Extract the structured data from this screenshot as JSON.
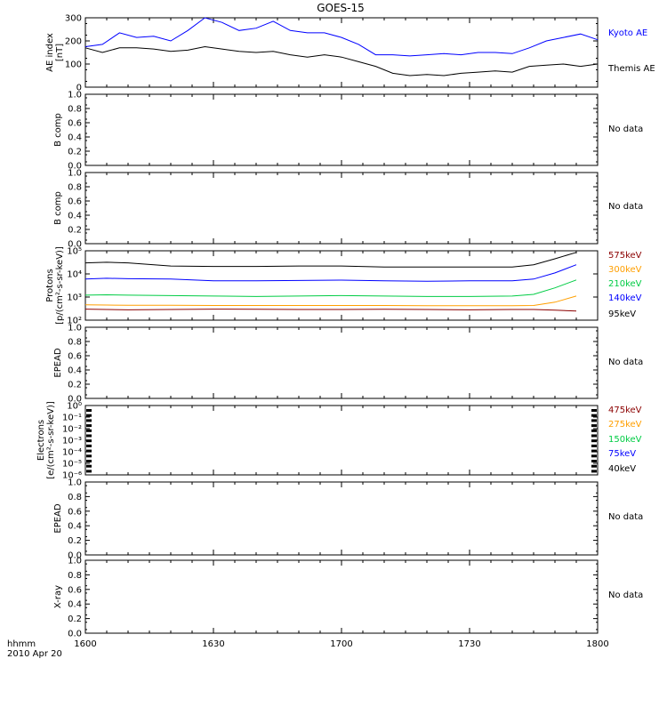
{
  "title": "GOES-15",
  "colors": {
    "kyoto": "#0000ff",
    "themis": "#000000",
    "e575": "#8b0000",
    "e300": "#ff9f00",
    "e210": "#00cc44",
    "e140": "#0000ff",
    "e95": "#000000"
  },
  "xaxis": {
    "ticks": [
      "1600",
      "1630",
      "1700",
      "1730",
      "1800"
    ],
    "corner_label": "hhmm",
    "date": "2010 Apr 20"
  },
  "chart_data": [
    {
      "type": "line",
      "ylabel": "AE index [nT]",
      "ylim": [
        0,
        300
      ],
      "yticks": [
        "0",
        "100",
        "200",
        "300"
      ],
      "x_unit": "minutes after 16:00",
      "series": [
        {
          "name": "Kyoto AE",
          "x": [
            0,
            4,
            8,
            12,
            16,
            20,
            24,
            28,
            32,
            36,
            40,
            44,
            48,
            52,
            56,
            60,
            64,
            68,
            72,
            76,
            80,
            84,
            88,
            92,
            96,
            100,
            104,
            108,
            112,
            116,
            120
          ],
          "values": [
            175,
            185,
            235,
            215,
            220,
            200,
            245,
            300,
            280,
            245,
            255,
            285,
            245,
            235,
            235,
            215,
            185,
            140,
            140,
            135,
            140,
            145,
            140,
            150,
            150,
            145,
            170,
            200,
            215,
            230,
            205
          ]
        },
        {
          "name": "Themis AE",
          "x": [
            0,
            4,
            8,
            12,
            16,
            20,
            24,
            28,
            32,
            36,
            40,
            44,
            48,
            52,
            56,
            60,
            64,
            68,
            72,
            76,
            80,
            84,
            88,
            92,
            96,
            100,
            104,
            108,
            112,
            116,
            120
          ],
          "values": [
            170,
            150,
            170,
            170,
            165,
            155,
            160,
            175,
            165,
            155,
            150,
            155,
            140,
            130,
            140,
            130,
            110,
            90,
            60,
            50,
            55,
            50,
            60,
            65,
            70,
            65,
            90,
            95,
            100,
            90,
            100
          ]
        }
      ],
      "legend": [
        "Kyoto AE",
        "Themis AE"
      ]
    },
    {
      "type": "line",
      "ylabel": "B comp",
      "ylim": [
        0,
        1
      ],
      "yticks": [
        "0.0",
        "0.2",
        "0.4",
        "0.6",
        "0.8",
        "1.0"
      ],
      "status": "No data"
    },
    {
      "type": "line",
      "ylabel": "B comp",
      "ylim": [
        0,
        1
      ],
      "yticks": [
        "0.0",
        "0.2",
        "0.4",
        "0.6",
        "0.8",
        "1.0"
      ],
      "status": "No data"
    },
    {
      "type": "line",
      "ylabel": "Protons [p/(cm²-s-sr-keV)]",
      "log": true,
      "ylim": [
        100,
        100000
      ],
      "yticks": [
        "10²",
        "10³",
        "10⁴",
        "10⁵"
      ],
      "x_unit": "minutes after 16:00",
      "series": [
        {
          "name": "95keV",
          "x": [
            0,
            5,
            10,
            20,
            30,
            40,
            50,
            60,
            70,
            80,
            90,
            100,
            105,
            110,
            115
          ],
          "values": [
            30000,
            32000,
            30000,
            22000,
            21000,
            21000,
            22000,
            22000,
            20000,
            20000,
            20000,
            20000,
            25000,
            45000,
            85000
          ]
        },
        {
          "name": "140keV",
          "x": [
            0,
            5,
            10,
            20,
            30,
            40,
            50,
            60,
            70,
            80,
            90,
            100,
            105,
            110,
            115
          ],
          "values": [
            6000,
            6500,
            6200,
            6000,
            5000,
            5000,
            5200,
            5400,
            5000,
            4800,
            5000,
            5000,
            6000,
            11000,
            25000
          ]
        },
        {
          "name": "210keV",
          "x": [
            0,
            5,
            10,
            20,
            30,
            40,
            50,
            60,
            70,
            80,
            90,
            100,
            105,
            110,
            115
          ],
          "values": [
            1200,
            1250,
            1200,
            1150,
            1100,
            1050,
            1100,
            1150,
            1100,
            1050,
            1050,
            1100,
            1300,
            2500,
            5500
          ]
        },
        {
          "name": "300keV",
          "x": [
            0,
            5,
            10,
            20,
            30,
            40,
            50,
            60,
            70,
            80,
            90,
            100,
            105,
            110,
            115
          ],
          "values": [
            460,
            450,
            440,
            440,
            430,
            430,
            430,
            430,
            430,
            420,
            420,
            420,
            430,
            600,
            1100
          ]
        },
        {
          "name": "575keV",
          "x": [
            0,
            5,
            10,
            20,
            30,
            40,
            50,
            60,
            70,
            80,
            90,
            100,
            105,
            110,
            115
          ],
          "values": [
            300,
            290,
            280,
            290,
            300,
            295,
            290,
            290,
            295,
            290,
            280,
            290,
            290,
            270,
            250
          ]
        }
      ],
      "legend": [
        "575keV",
        "300keV",
        "210keV",
        "140keV",
        "95keV"
      ]
    },
    {
      "type": "line",
      "ylabel": "EPEAD",
      "ylim": [
        0,
        1
      ],
      "yticks": [
        "0.0",
        "0.2",
        "0.4",
        "0.6",
        "0.8",
        "1.0"
      ],
      "status": "No data"
    },
    {
      "type": "line",
      "ylabel": "Electrons [e/(cm²-s-sr-keV)]",
      "log": true,
      "ylim": [
        1e-06,
        1
      ],
      "yticks": [
        "10⁻⁶",
        "10⁻⁵",
        "10⁻⁴",
        "10⁻³",
        "10⁻²",
        "10⁻¹",
        "10⁰"
      ],
      "series": [],
      "legend": [
        "475keV",
        "275keV",
        "150keV",
        "75keV",
        "40keV"
      ]
    },
    {
      "type": "line",
      "ylabel": "EPEAD",
      "ylim": [
        0,
        1
      ],
      "yticks": [
        "0.0",
        "0.2",
        "0.4",
        "0.6",
        "0.8",
        "1.0"
      ],
      "status": "No data"
    },
    {
      "type": "line",
      "ylabel": "X-ray",
      "ylim": [
        0,
        1
      ],
      "yticks": [
        "0.0",
        "0.2",
        "0.4",
        "0.6",
        "0.8",
        "1.0"
      ],
      "status": "No data"
    }
  ]
}
